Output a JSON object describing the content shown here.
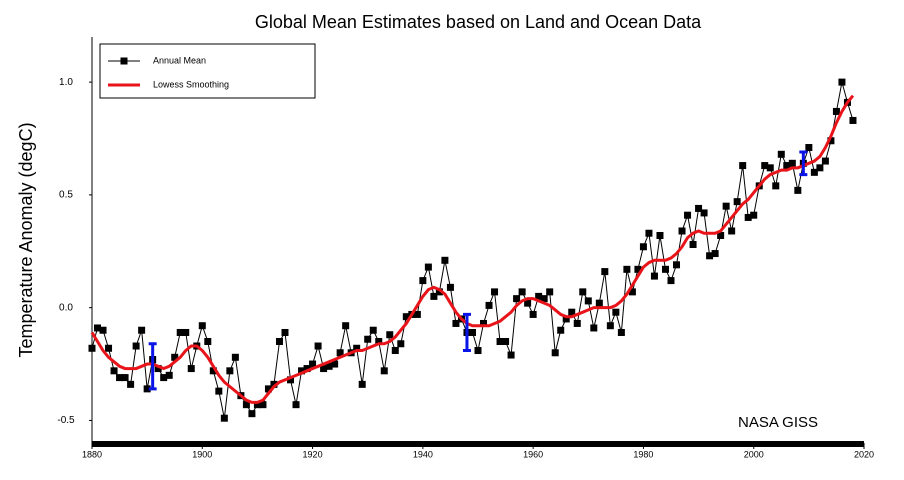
{
  "chart_data": {
    "type": "line",
    "title": "Global Mean Estimates based on Land and Ocean Data",
    "y_label": "Temperature Anomaly (degC)",
    "annotation": "NASA GISS",
    "xlim": [
      1880,
      2020
    ],
    "xticks": [
      1880,
      1900,
      1920,
      1940,
      1960,
      1980,
      2000,
      2020
    ],
    "ylim": [
      -0.6,
      1.2
    ],
    "yticks": [
      {
        "value": -0.5,
        "label": "-0.5"
      },
      {
        "value": 0,
        "label": "0.0"
      },
      {
        "value": 0.5,
        "label": "0.5"
      },
      {
        "value": 1,
        "label": "1.0"
      }
    ],
    "legend": "top-left",
    "x": [
      1880,
      1881,
      1882,
      1883,
      1884,
      1885,
      1886,
      1887,
      1888,
      1889,
      1890,
      1891,
      1892,
      1893,
      1894,
      1895,
      1896,
      1897,
      1898,
      1899,
      1900,
      1901,
      1902,
      1903,
      1904,
      1905,
      1906,
      1907,
      1908,
      1909,
      1910,
      1911,
      1912,
      1913,
      1914,
      1915,
      1916,
      1917,
      1918,
      1919,
      1920,
      1921,
      1922,
      1923,
      1924,
      1925,
      1926,
      1927,
      1928,
      1929,
      1930,
      1931,
      1932,
      1933,
      1934,
      1935,
      1936,
      1937,
      1938,
      1939,
      1940,
      1941,
      1942,
      1943,
      1944,
      1945,
      1946,
      1947,
      1948,
      1949,
      1950,
      1951,
      1952,
      1953,
      1954,
      1955,
      1956,
      1957,
      1958,
      1959,
      1960,
      1961,
      1962,
      1963,
      1964,
      1965,
      1966,
      1967,
      1968,
      1969,
      1970,
      1971,
      1972,
      1973,
      1974,
      1975,
      1976,
      1977,
      1978,
      1979,
      1980,
      1981,
      1982,
      1983,
      1984,
      1985,
      1986,
      1987,
      1988,
      1989,
      1990,
      1991,
      1992,
      1993,
      1994,
      1995,
      1996,
      1997,
      1998,
      1999,
      2000,
      2001,
      2002,
      2003,
      2004,
      2005,
      2006,
      2007,
      2008,
      2009,
      2010,
      2011,
      2012,
      2013,
      2014,
      2015,
      2016,
      2017,
      2018
    ],
    "series": [
      {
        "name": "Annual Mean",
        "color": "#000000",
        "marker": "square",
        "values": [
          -0.18,
          -0.09,
          -0.1,
          -0.18,
          -0.28,
          -0.31,
          -0.31,
          -0.34,
          -0.17,
          -0.1,
          -0.36,
          -0.23,
          -0.27,
          -0.31,
          -0.3,
          -0.22,
          -0.11,
          -0.11,
          -0.27,
          -0.17,
          -0.08,
          -0.15,
          -0.28,
          -0.37,
          -0.49,
          -0.28,
          -0.22,
          -0.39,
          -0.43,
          -0.47,
          -0.43,
          -0.43,
          -0.36,
          -0.34,
          -0.15,
          -0.11,
          -0.32,
          -0.43,
          -0.28,
          -0.27,
          -0.25,
          -0.17,
          -0.27,
          -0.26,
          -0.25,
          -0.2,
          -0.08,
          -0.2,
          -0.18,
          -0.34,
          -0.14,
          -0.1,
          -0.15,
          -0.28,
          -0.12,
          -0.19,
          -0.16,
          -0.04,
          -0.03,
          -0.03,
          0.12,
          0.18,
          0.05,
          0.07,
          0.21,
          0.09,
          -0.07,
          -0.05,
          -0.11,
          -0.11,
          -0.19,
          -0.07,
          0.01,
          0.07,
          -0.15,
          -0.15,
          -0.21,
          0.04,
          0.07,
          0.02,
          -0.03,
          0.05,
          0.04,
          0.07,
          -0.2,
          -0.1,
          -0.05,
          -0.02,
          -0.07,
          0.07,
          0.03,
          -0.09,
          0.02,
          0.16,
          -0.08,
          -0.02,
          -0.11,
          0.17,
          0.07,
          0.17,
          0.27,
          0.33,
          0.14,
          0.32,
          0.17,
          0.12,
          0.19,
          0.34,
          0.41,
          0.28,
          0.44,
          0.42,
          0.23,
          0.24,
          0.32,
          0.45,
          0.34,
          0.47,
          0.63,
          0.4,
          0.41,
          0.54,
          0.63,
          0.62,
          0.54,
          0.68,
          0.63,
          0.64,
          0.52,
          0.64,
          0.71,
          0.6,
          0.62,
          0.65,
          0.74,
          0.87,
          1.0,
          0.91,
          0.83
        ]
      },
      {
        "name": "Lowess Smoothing",
        "color": "#e8141a",
        "values": [
          -0.11,
          -0.15,
          -0.19,
          -0.22,
          -0.24,
          -0.26,
          -0.27,
          -0.27,
          -0.27,
          -0.26,
          -0.25,
          -0.25,
          -0.26,
          -0.27,
          -0.26,
          -0.24,
          -0.22,
          -0.19,
          -0.17,
          -0.17,
          -0.19,
          -0.22,
          -0.26,
          -0.3,
          -0.33,
          -0.35,
          -0.37,
          -0.39,
          -0.41,
          -0.42,
          -0.42,
          -0.41,
          -0.38,
          -0.35,
          -0.33,
          -0.32,
          -0.31,
          -0.3,
          -0.29,
          -0.28,
          -0.27,
          -0.26,
          -0.25,
          -0.24,
          -0.23,
          -0.22,
          -0.21,
          -0.2,
          -0.19,
          -0.19,
          -0.18,
          -0.17,
          -0.16,
          -0.16,
          -0.15,
          -0.13,
          -0.1,
          -0.07,
          -0.03,
          0.01,
          0.05,
          0.08,
          0.09,
          0.08,
          0.06,
          0.02,
          -0.02,
          -0.05,
          -0.07,
          -0.08,
          -0.08,
          -0.08,
          -0.08,
          -0.07,
          -0.06,
          -0.04,
          -0.02,
          0.01,
          0.03,
          0.04,
          0.04,
          0.03,
          0.02,
          0.01,
          -0.01,
          -0.03,
          -0.04,
          -0.04,
          -0.03,
          -0.02,
          -0.01,
          0,
          0,
          0,
          0,
          0.01,
          0.03,
          0.06,
          0.1,
          0.14,
          0.18,
          0.2,
          0.21,
          0.21,
          0.21,
          0.22,
          0.24,
          0.27,
          0.31,
          0.33,
          0.34,
          0.33,
          0.33,
          0.33,
          0.34,
          0.37,
          0.4,
          0.43,
          0.46,
          0.48,
          0.51,
          0.54,
          0.57,
          0.59,
          0.6,
          0.61,
          0.61,
          0.62,
          0.62,
          0.63,
          0.64,
          0.65,
          0.67,
          0.71,
          0.76,
          0.82,
          0.87,
          0.91,
          0.94
        ]
      }
    ],
    "error_bars": {
      "color": "#0a14e6",
      "x": [
        1891,
        1948,
        2009
      ],
      "values": [
        -0.26,
        -0.11,
        0.64
      ],
      "errors": [
        0.1,
        0.08,
        0.05
      ]
    }
  }
}
